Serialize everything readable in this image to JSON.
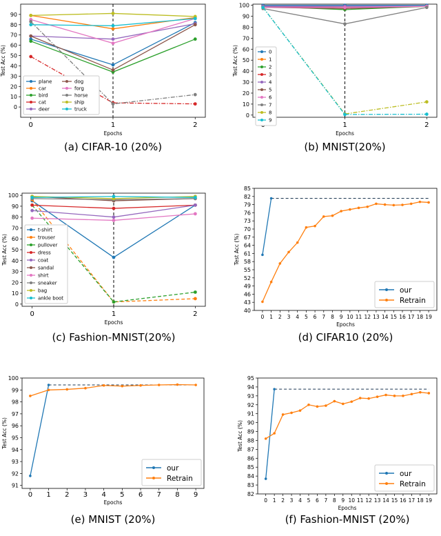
{
  "chart_data": [
    {
      "id": "a",
      "type": "line",
      "title": "",
      "caption": "(a)  CIFAR-10 (20%)",
      "xlabel": "Epochs",
      "ylabel": "Test Acc (%)",
      "x": [
        0,
        1,
        2
      ],
      "xticks": [
        "0",
        "1",
        "2"
      ],
      "ylim": [
        -10,
        100
      ],
      "yticks": [
        "0",
        "10",
        "20",
        "30",
        "40",
        "50",
        "60",
        "70",
        "80",
        "90"
      ],
      "vline": 1,
      "legend_loc": "lower-left",
      "legend_cols": 2,
      "series": [
        {
          "name": "plane",
          "color": "#1f77b4",
          "values": [
            66,
            41,
            82
          ],
          "dash": "solid"
        },
        {
          "name": "car",
          "color": "#ff7f0e",
          "values": [
            89,
            76,
            87
          ],
          "dash": "solid"
        },
        {
          "name": "bird",
          "color": "#2ca02c",
          "values": [
            64,
            34,
            66
          ],
          "dash": "solid"
        },
        {
          "name": "cat",
          "color": "#d62728",
          "values": [
            49,
            4,
            3
          ],
          "dash": "dashdot"
        },
        {
          "name": "deer",
          "color": "#9467bd",
          "values": [
            69,
            66,
            81
          ],
          "dash": "solid"
        },
        {
          "name": "dog",
          "color": "#8c564b",
          "values": [
            69,
            36,
            80
          ],
          "dash": "solid"
        },
        {
          "name": "forg",
          "color": "#e377c2",
          "values": [
            85,
            62,
            86
          ],
          "dash": "solid"
        },
        {
          "name": "horse",
          "color": "#7f7f7f",
          "values": [
            83,
            3,
            12
          ],
          "dash": "dashdot"
        },
        {
          "name": "ship",
          "color": "#bcbd22",
          "values": [
            89,
            91,
            88
          ],
          "dash": "solid"
        },
        {
          "name": "truck",
          "color": "#17becf",
          "values": [
            80,
            79,
            86
          ],
          "dash": "solid"
        }
      ]
    },
    {
      "id": "b",
      "type": "line",
      "title": "",
      "caption": "(b)  MNIST(20%)",
      "xlabel": "Epochs",
      "ylabel": "Test Acc (%)",
      "x": [
        0,
        1,
        2
      ],
      "xticks": [
        "0",
        "1",
        "2"
      ],
      "ylim": [
        -2,
        101
      ],
      "yticks": [
        "0",
        "10",
        "20",
        "30",
        "40",
        "50",
        "60",
        "70",
        "80",
        "90",
        "100"
      ],
      "vline": 1,
      "legend_loc": "center-left",
      "legend_cols": 1,
      "series": [
        {
          "name": "0",
          "color": "#1f77b4",
          "values": [
            100,
            100,
            100
          ],
          "dash": "solid"
        },
        {
          "name": "1",
          "color": "#ff7f0e",
          "values": [
            99,
            99,
            99
          ],
          "dash": "solid"
        },
        {
          "name": "2",
          "color": "#2ca02c",
          "values": [
            99,
            96,
            99
          ],
          "dash": "solid"
        },
        {
          "name": "3",
          "color": "#d62728",
          "values": [
            99,
            98,
            99
          ],
          "dash": "solid"
        },
        {
          "name": "4",
          "color": "#9467bd",
          "values": [
            99,
            99,
            99
          ],
          "dash": "solid"
        },
        {
          "name": "5",
          "color": "#8c564b",
          "values": [
            98,
            97,
            99
          ],
          "dash": "solid"
        },
        {
          "name": "6",
          "color": "#e377c2",
          "values": [
            98,
            98,
            99
          ],
          "dash": "solid"
        },
        {
          "name": "7",
          "color": "#7f7f7f",
          "values": [
            97,
            83,
            98
          ],
          "dash": "solid"
        },
        {
          "name": "8",
          "color": "#bcbd22",
          "values": [
            98,
            1,
            12
          ],
          "dash": "dashdot"
        },
        {
          "name": "9",
          "color": "#17becf",
          "values": [
            98,
            0.5,
            0.8
          ],
          "dash": "dashdot"
        }
      ]
    },
    {
      "id": "c",
      "type": "line",
      "title": "",
      "caption": "(c)  Fashion-MNIST(20%)",
      "xlabel": "Epochs",
      "ylabel": "Test Acc (%)",
      "x": [
        0,
        1,
        2
      ],
      "xticks": [
        "0",
        "1",
        "2"
      ],
      "ylim": [
        -2,
        102
      ],
      "yticks": [
        "0",
        "10",
        "20",
        "30",
        "40",
        "50",
        "60",
        "70",
        "80",
        "90",
        "100"
      ],
      "vline": 1,
      "legend_loc": "lower-left",
      "legend_cols": 1,
      "series": [
        {
          "name": "t-shirt",
          "color": "#1f77b4",
          "values": [
            95,
            43,
            91
          ],
          "dash": "solid"
        },
        {
          "name": "trouser",
          "color": "#ff7f0e",
          "values": [
            96,
            2,
            5
          ],
          "dash": "dash"
        },
        {
          "name": "pullover",
          "color": "#2ca02c",
          "values": [
            91,
            2,
            11
          ],
          "dash": "dash"
        },
        {
          "name": "dress",
          "color": "#d62728",
          "values": [
            91,
            88,
            91
          ],
          "dash": "solid"
        },
        {
          "name": "coat",
          "color": "#9467bd",
          "values": [
            86,
            80,
            91
          ],
          "dash": "solid"
        },
        {
          "name": "sandal",
          "color": "#8c564b",
          "values": [
            99,
            95,
            97
          ],
          "dash": "solid"
        },
        {
          "name": "shirt",
          "color": "#e377c2",
          "values": [
            79,
            77,
            83
          ],
          "dash": "solid"
        },
        {
          "name": "sneaker",
          "color": "#7f7f7f",
          "values": [
            97,
            96,
            97
          ],
          "dash": "solid"
        },
        {
          "name": "bag",
          "color": "#bcbd22",
          "values": [
            99,
            97,
            99
          ],
          "dash": "solid"
        },
        {
          "name": "ankle boot",
          "color": "#17becf",
          "values": [
            98,
            99,
            98
          ],
          "dash": "solid"
        }
      ]
    },
    {
      "id": "d",
      "type": "line",
      "title": "",
      "caption": "(d)  CIFAR10 (20%)",
      "xlabel": "Epochs",
      "ylabel": "Test Acc (%)",
      "x": [
        0,
        1,
        2,
        3,
        4,
        5,
        6,
        7,
        8,
        9,
        10,
        11,
        12,
        13,
        14,
        15,
        16,
        17,
        18,
        19
      ],
      "xticks": [
        "0",
        "1",
        "2",
        "3",
        "4",
        "5",
        "6",
        "7",
        "8",
        "9",
        "10",
        "11",
        "12",
        "13",
        "14",
        "15",
        "16",
        "17",
        "18",
        "19"
      ],
      "ylim": [
        40,
        85
      ],
      "yticks": [
        "40",
        "43",
        "46",
        "49",
        "52",
        "55",
        "58",
        "61",
        "64",
        "67",
        "70",
        "73",
        "76",
        "79",
        "82",
        "85"
      ],
      "legend_loc": "lower-right",
      "legend_cols": 1,
      "hline": 81.3,
      "series": [
        {
          "name": "our",
          "color": "#1f77b4",
          "dash": "solid",
          "x": [
            0,
            1
          ],
          "values": [
            60.5,
            81.3
          ]
        },
        {
          "name": "Retrain",
          "color": "#ff7f0e",
          "dash": "solid",
          "values": [
            43.2,
            50.5,
            57.3,
            61.5,
            65.0,
            70.6,
            71.1,
            74.6,
            74.9,
            76.6,
            77.2,
            77.8,
            78.2,
            79.3,
            79.0,
            78.8,
            78.9,
            79.3,
            80.0,
            79.8
          ]
        }
      ]
    },
    {
      "id": "e",
      "type": "line",
      "title": "",
      "caption": "(e)  MNIST (20%)",
      "xlabel": "Epochs",
      "ylabel": "Test Acc (%)",
      "x": [
        0,
        1,
        2,
        3,
        4,
        5,
        6,
        7,
        8,
        9
      ],
      "xticks": [
        "0",
        "1",
        "2",
        "3",
        "4",
        "5",
        "6",
        "7",
        "8",
        "9"
      ],
      "ylim": [
        90.75,
        100
      ],
      "yticks": [
        "91",
        "92",
        "93",
        "94",
        "95",
        "96",
        "97",
        "98",
        "99",
        "100"
      ],
      "legend_loc": "lower-right",
      "legend_cols": 1,
      "hline": 99.42,
      "series": [
        {
          "name": "our",
          "color": "#1f77b4",
          "dash": "solid",
          "x": [
            0,
            1
          ],
          "values": [
            91.8,
            99.42
          ]
        },
        {
          "name": "Retrain",
          "color": "#ff7f0e",
          "dash": "solid",
          "values": [
            98.5,
            99.0,
            99.05,
            99.15,
            99.38,
            99.32,
            99.38,
            99.42,
            99.45,
            99.42
          ]
        }
      ]
    },
    {
      "id": "f",
      "type": "line",
      "title": "",
      "caption": "(f)  Fashion-MNIST (20%)",
      "xlabel": "Epochs",
      "ylabel": "Test Acc (%)",
      "x": [
        0,
        1,
        2,
        3,
        4,
        5,
        6,
        7,
        8,
        9,
        10,
        11,
        12,
        13,
        14,
        15,
        16,
        17,
        18,
        19
      ],
      "xticks": [
        "0",
        "1",
        "2",
        "3",
        "4",
        "5",
        "6",
        "7",
        "8",
        "9",
        "10",
        "11",
        "12",
        "13",
        "14",
        "15",
        "16",
        "17",
        "18",
        "19"
      ],
      "ylim": [
        82,
        95
      ],
      "yticks": [
        "82",
        "83",
        "84",
        "85",
        "86",
        "87",
        "88",
        "89",
        "90",
        "91",
        "92",
        "93",
        "94",
        "95"
      ],
      "legend_loc": "lower-right",
      "legend_cols": 1,
      "hline": 93.75,
      "series": [
        {
          "name": "our",
          "color": "#1f77b4",
          "dash": "solid",
          "x": [
            0,
            1
          ],
          "values": [
            83.7,
            93.75
          ]
        },
        {
          "name": "Retrain",
          "color": "#ff7f0e",
          "dash": "solid",
          "values": [
            88.2,
            88.8,
            90.9,
            91.1,
            91.35,
            92.0,
            91.8,
            91.9,
            92.4,
            92.1,
            92.35,
            92.75,
            92.7,
            92.9,
            93.1,
            93.0,
            93.0,
            93.2,
            93.4,
            93.3
          ]
        }
      ]
    }
  ]
}
